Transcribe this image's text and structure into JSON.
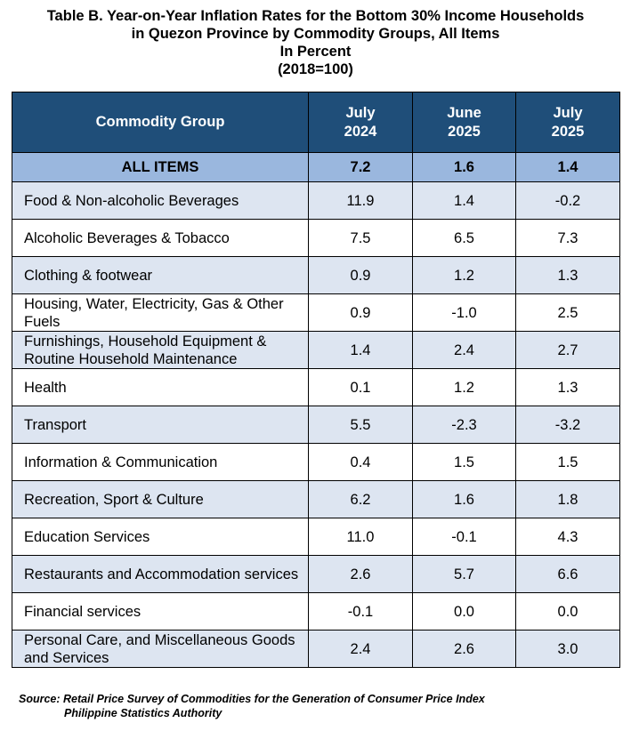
{
  "title": {
    "line1": "Table B. Year-on-Year Inflation Rates for the Bottom 30% Income Households",
    "line2": "in Quezon Province by Commodity Groups, All Items",
    "line3": "In Percent",
    "line4": "(2018=100)"
  },
  "table": {
    "headers": {
      "commodity": "Commodity Group",
      "col1": {
        "month": "July",
        "year": "2024"
      },
      "col2": {
        "month": "June",
        "year": "2025"
      },
      "col3": {
        "month": "July",
        "year": "2025"
      }
    },
    "all_items": {
      "label": "ALL ITEMS",
      "v1": "7.2",
      "v2": "1.6",
      "v3": "1.4"
    },
    "rows": [
      {
        "label": "Food & Non-alcoholic Beverages",
        "v1": "11.9",
        "v2": "1.4",
        "v3": "-0.2"
      },
      {
        "label": "Alcoholic Beverages & Tobacco",
        "v1": "7.5",
        "v2": "6.5",
        "v3": "7.3"
      },
      {
        "label": "Clothing & footwear",
        "v1": "0.9",
        "v2": "1.2",
        "v3": "1.3"
      },
      {
        "label": "Housing, Water, Electricity, Gas & Other Fuels",
        "v1": "0.9",
        "v2": "-1.0",
        "v3": "2.5"
      },
      {
        "label": "Furnishings, Household Equipment & Routine Household Maintenance",
        "v1": "1.4",
        "v2": "2.4",
        "v3": "2.7"
      },
      {
        "label": "Health",
        "v1": "0.1",
        "v2": "1.2",
        "v3": "1.3"
      },
      {
        "label": "Transport",
        "v1": "5.5",
        "v2": "-2.3",
        "v3": "-3.2"
      },
      {
        "label": "Information & Communication",
        "v1": "0.4",
        "v2": "1.5",
        "v3": "1.5"
      },
      {
        "label": "Recreation, Sport & Culture",
        "v1": "6.2",
        "v2": "1.6",
        "v3": "1.8"
      },
      {
        "label": "Education Services",
        "v1": "11.0",
        "v2": "-0.1",
        "v3": "4.3"
      },
      {
        "label": "Restaurants and Accommodation services",
        "v1": "2.6",
        "v2": "5.7",
        "v3": "6.6"
      },
      {
        "label": "Financial services",
        "v1": "-0.1",
        "v2": "0.0",
        "v3": "0.0"
      },
      {
        "label": "Personal Care, and Miscellaneous Goods and Services",
        "v1": "2.4",
        "v2": "2.6",
        "v3": "3.0"
      }
    ]
  },
  "source": {
    "line1": "Source: Retail Price Survey of Commodities for the Generation of Consumer Price Index",
    "line2": "Philippine Statistics Authority"
  },
  "colors": {
    "header_bg": "#1f4e79",
    "all_items_bg": "#9ab7de",
    "shaded_row_bg": "#dde5f1"
  }
}
